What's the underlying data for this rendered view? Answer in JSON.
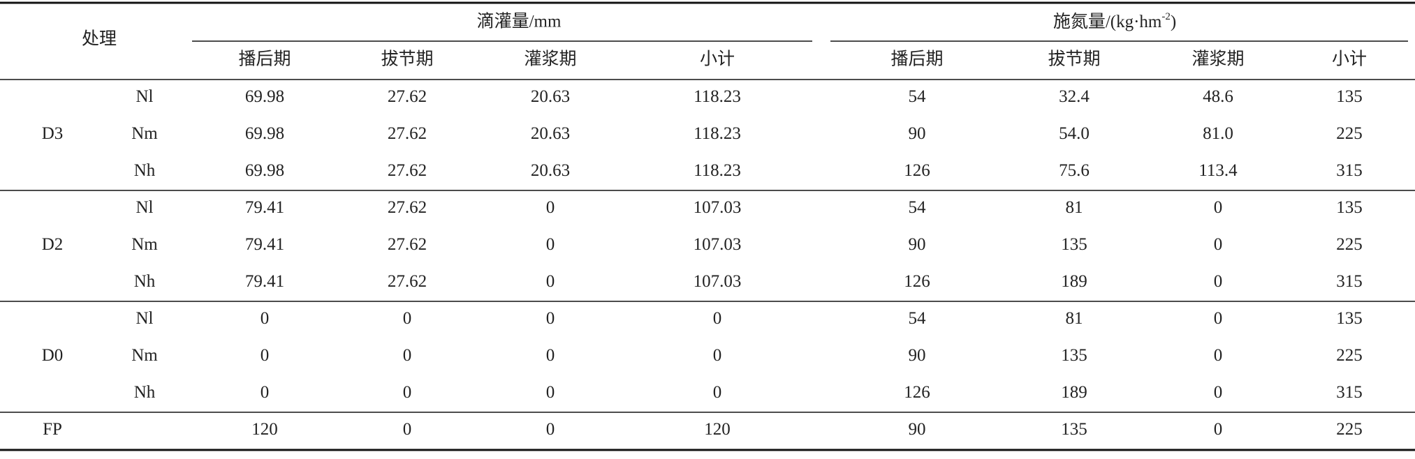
{
  "table": {
    "header": {
      "treatment": "处理",
      "groups": [
        "滴灌量/mm",
        {
          "prefix": "施氮量/(kg·hm",
          "sup": "-2",
          "suffix": ")"
        }
      ],
      "columns": [
        "播后期",
        "拔节期",
        "灌浆期",
        "小计",
        "播后期",
        "拔节期",
        "灌浆期",
        "小计"
      ]
    },
    "groups": [
      {
        "label": "D3",
        "rows": [
          {
            "n": "Nl",
            "values": [
              "69.98",
              "27.62",
              "20.63",
              "118.23",
              "54",
              "32.4",
              "48.6",
              "135"
            ]
          },
          {
            "n": "Nm",
            "values": [
              "69.98",
              "27.62",
              "20.63",
              "118.23",
              "90",
              "54.0",
              "81.0",
              "225"
            ]
          },
          {
            "n": "Nh",
            "values": [
              "69.98",
              "27.62",
              "20.63",
              "118.23",
              "126",
              "75.6",
              "113.4",
              "315"
            ]
          }
        ]
      },
      {
        "label": "D2",
        "rows": [
          {
            "n": "Nl",
            "values": [
              "79.41",
              "27.62",
              "0",
              "107.03",
              "54",
              "81",
              "0",
              "135"
            ]
          },
          {
            "n": "Nm",
            "values": [
              "79.41",
              "27.62",
              "0",
              "107.03",
              "90",
              "135",
              "0",
              "225"
            ]
          },
          {
            "n": "Nh",
            "values": [
              "79.41",
              "27.62",
              "0",
              "107.03",
              "126",
              "189",
              "0",
              "315"
            ]
          }
        ]
      },
      {
        "label": "D0",
        "rows": [
          {
            "n": "Nl",
            "values": [
              "0",
              "0",
              "0",
              "0",
              "54",
              "81",
              "0",
              "135"
            ]
          },
          {
            "n": "Nm",
            "values": [
              "0",
              "0",
              "0",
              "0",
              "90",
              "135",
              "0",
              "225"
            ]
          },
          {
            "n": "Nh",
            "values": [
              "0",
              "0",
              "0",
              "0",
              "126",
              "189",
              "0",
              "315"
            ]
          }
        ]
      },
      {
        "label": "FP",
        "rows": [
          {
            "values": [
              "120",
              "0",
              "0",
              "120",
              "90",
              "135",
              "0",
              "225"
            ]
          }
        ]
      }
    ]
  }
}
